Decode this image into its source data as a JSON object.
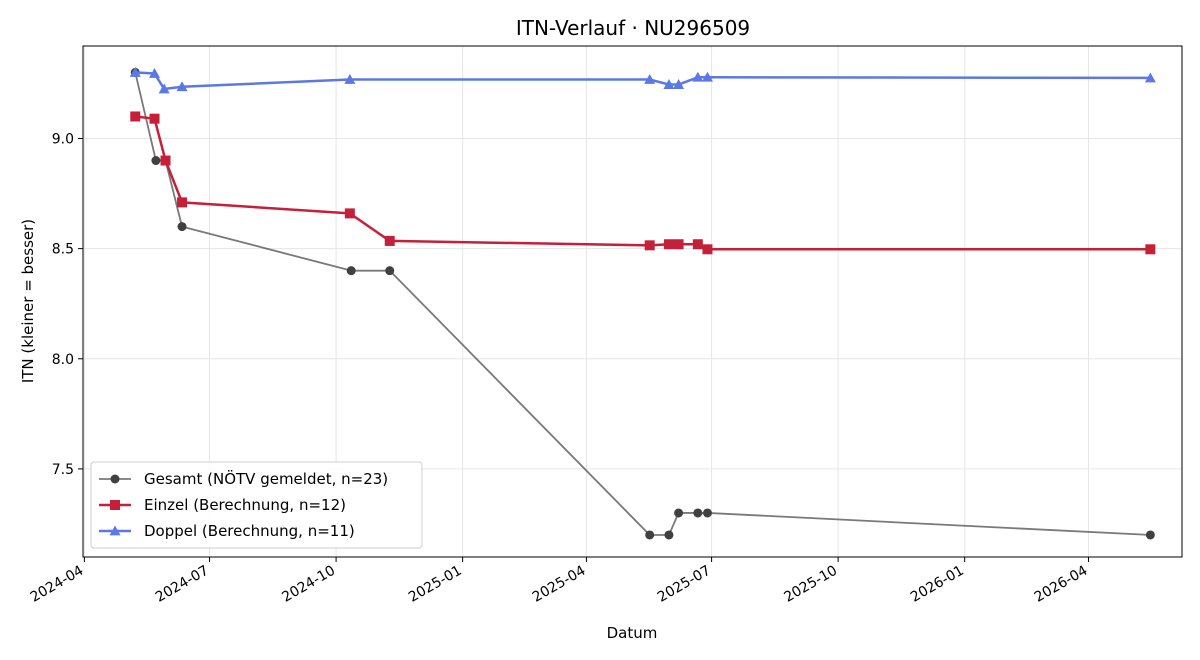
{
  "chart_data": {
    "type": "line",
    "title": "ITN-Verlauf · NU296509",
    "xlabel": "Datum",
    "ylabel": "ITN  (kleiner = besser)",
    "xlim": [
      "2024-03-31",
      "2026-06-08"
    ],
    "ylim": [
      7.1,
      9.42
    ],
    "x_ticks": [
      "2024-04",
      "2024-07",
      "2024-10",
      "2025-01",
      "2025-04",
      "2025-07",
      "2025-10",
      "2026-01",
      "2026-04"
    ],
    "x_tick_dates": [
      "2024-04-01",
      "2024-07-01",
      "2024-10-01",
      "2025-01-01",
      "2025-04-01",
      "2025-07-01",
      "2025-10-01",
      "2026-01-01",
      "2026-04-01"
    ],
    "y_ticks": [
      "7.5",
      "8.0",
      "8.5",
      "9.0"
    ],
    "y_tick_values": [
      7.5,
      8.0,
      8.5,
      9.0
    ],
    "grid": true,
    "legend_position": "lower-left",
    "series": [
      {
        "name": "Gesamt (NÖTV gemeldet, n=23)",
        "color": "#404040",
        "marker": "circle",
        "points": [
          [
            "2024-05-08",
            9.3
          ],
          [
            "2024-05-23",
            8.9
          ],
          [
            "2024-05-30",
            8.9
          ],
          [
            "2024-06-11",
            8.6
          ],
          [
            "2024-10-12",
            8.4
          ],
          [
            "2024-11-09",
            8.4
          ],
          [
            "2025-05-17",
            7.2
          ],
          [
            "2025-05-31",
            7.2
          ],
          [
            "2025-06-07",
            7.3
          ],
          [
            "2025-06-21",
            7.3
          ],
          [
            "2025-06-28",
            7.3
          ],
          [
            "2026-05-16",
            7.2
          ]
        ]
      },
      {
        "name": "Einzel (Berechnung, n=12)",
        "color": "#c5203a",
        "marker": "square",
        "points": [
          [
            "2024-05-08",
            9.1
          ],
          [
            "2024-05-22",
            9.09
          ],
          [
            "2024-05-30",
            8.9
          ],
          [
            "2024-06-11",
            8.71
          ],
          [
            "2024-10-11",
            8.66
          ],
          [
            "2024-11-09",
            8.535
          ],
          [
            "2025-05-17",
            8.515
          ],
          [
            "2025-05-31",
            8.52
          ],
          [
            "2025-06-07",
            8.52
          ],
          [
            "2025-06-21",
            8.52
          ],
          [
            "2025-06-28",
            8.497
          ],
          [
            "2026-05-16",
            8.497
          ]
        ]
      },
      {
        "name": "Doppel (Berechnung, n=11)",
        "color": "#5b78e6",
        "marker": "triangle",
        "points": [
          [
            "2024-05-08",
            9.3
          ],
          [
            "2024-05-22",
            9.295
          ],
          [
            "2024-05-29",
            9.225
          ],
          [
            "2024-06-11",
            9.235
          ],
          [
            "2024-10-11",
            9.268
          ],
          [
            "2025-05-17",
            9.268
          ],
          [
            "2025-05-31",
            9.245
          ],
          [
            "2025-06-07",
            9.245
          ],
          [
            "2025-06-21",
            9.278
          ],
          [
            "2025-06-28",
            9.278
          ],
          [
            "2026-05-16",
            9.275
          ]
        ]
      }
    ]
  }
}
